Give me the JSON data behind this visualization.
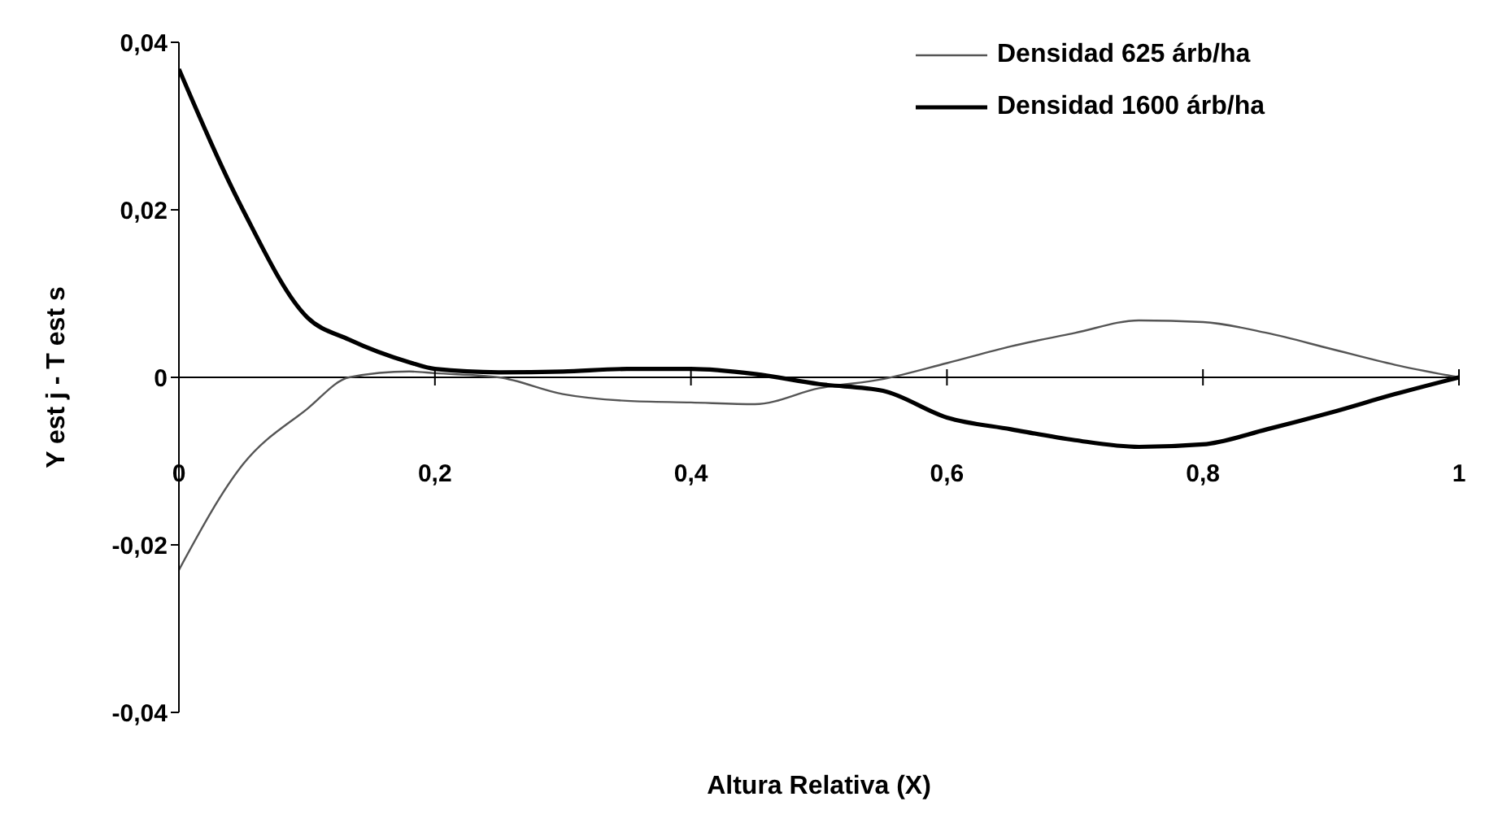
{
  "chart_data": {
    "type": "line",
    "xlabel": "Altura Relativa (X)",
    "ylabel": "Y est j - T est s",
    "xlim": [
      0,
      1
    ],
    "ylim": [
      -0.04,
      0.04
    ],
    "xticks": [
      {
        "value": 0,
        "label": "0"
      },
      {
        "value": 0.2,
        "label": "0,2"
      },
      {
        "value": 0.4,
        "label": "0,4"
      },
      {
        "value": 0.6,
        "label": "0,6"
      },
      {
        "value": 0.8,
        "label": "0,8"
      },
      {
        "value": 1,
        "label": "1"
      }
    ],
    "yticks": [
      {
        "value": -0.04,
        "label": "-0,04"
      },
      {
        "value": -0.02,
        "label": "-0,02"
      },
      {
        "value": 0,
        "label": "0"
      },
      {
        "value": 0.02,
        "label": "0,02"
      },
      {
        "value": 0.04,
        "label": "0,04"
      }
    ],
    "x": [
      0,
      0.05,
      0.1,
      0.133,
      0.18,
      0.2,
      0.25,
      0.3,
      0.35,
      0.4,
      0.45,
      0.5,
      0.55,
      0.6,
      0.65,
      0.7,
      0.75,
      0.8,
      0.85,
      0.9,
      0.95,
      1
    ],
    "series": [
      {
        "name": "Densidad 625 árb/ha",
        "color": "#555555",
        "values": [
          -0.023,
          -0.0104,
          -0.0038,
          0,
          0.0007,
          0.0005,
          0,
          -0.002,
          -0.0028,
          -0.003,
          -0.0032,
          -0.0013,
          -0.0002,
          0.0017,
          0.0037,
          0.0053,
          0.0068,
          0.0066,
          0.0053,
          0.0034,
          0.0015,
          0
        ]
      },
      {
        "name": "Densidad 1600 árb/ha",
        "color": "#000000",
        "values": [
          0.0368,
          0.02,
          0.0072,
          0.0045,
          0.0018,
          0.001,
          0.0006,
          0.0007,
          0.001,
          0.001,
          0.0004,
          -0.0008,
          -0.0016,
          -0.0048,
          -0.0062,
          -0.0075,
          -0.0083,
          -0.008,
          -0.0062,
          -0.0042,
          -0.002,
          0
        ]
      }
    ],
    "legend": "top right",
    "marker": "none",
    "line_style": "solid"
  }
}
